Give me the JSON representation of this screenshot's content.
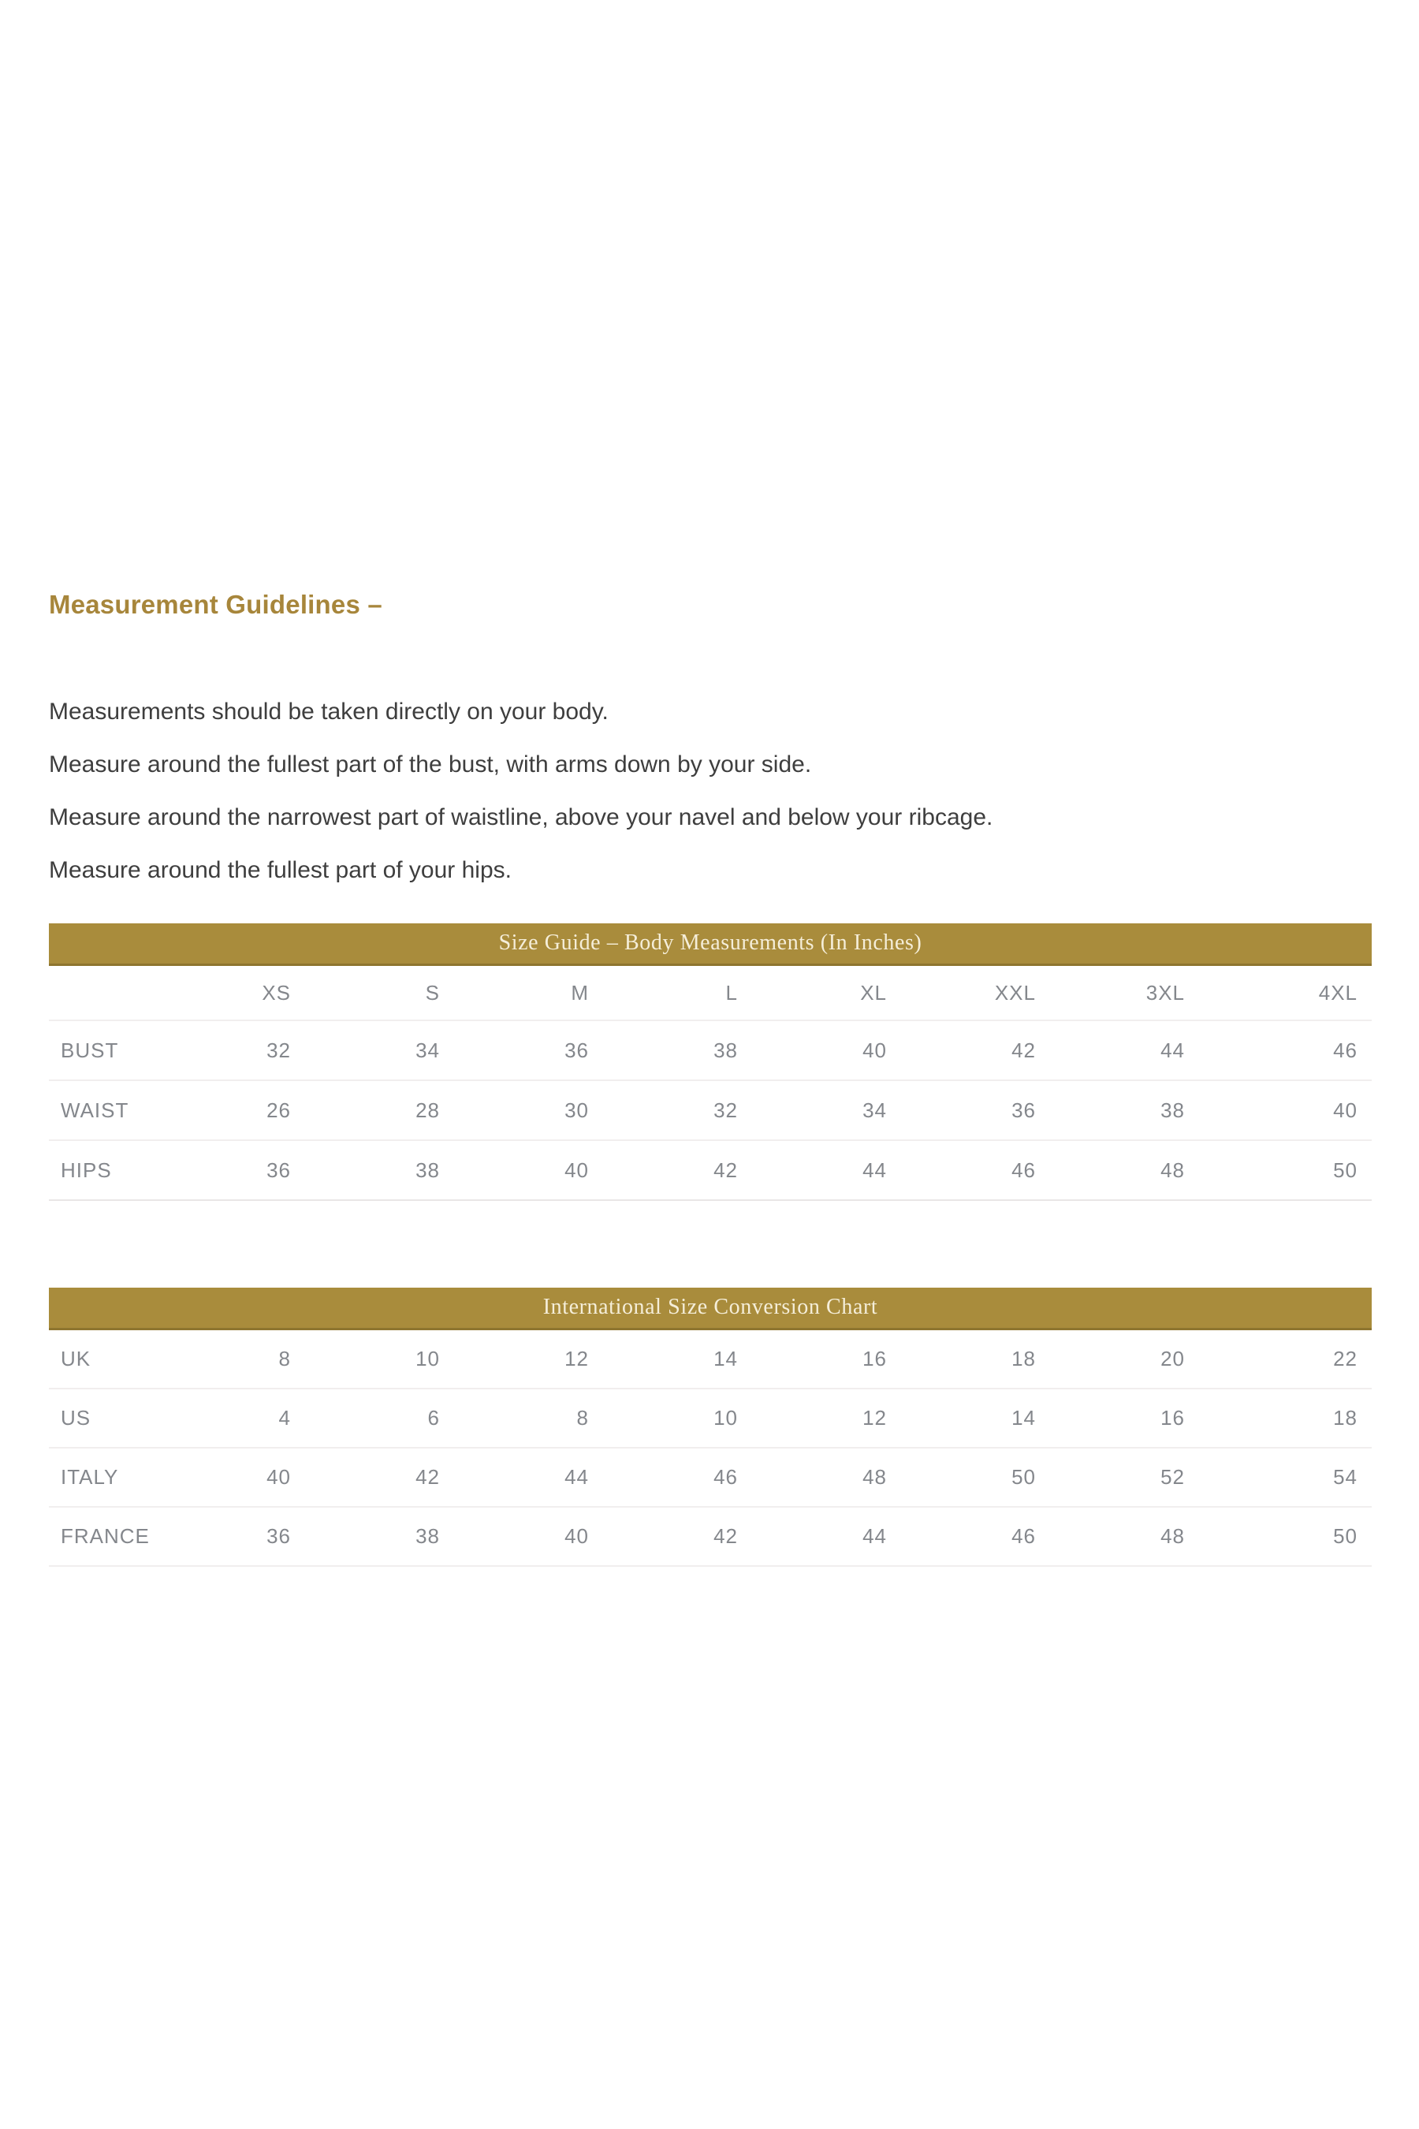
{
  "page": {
    "background_color": "#ffffff",
    "accent_color": "#a98c3c",
    "heading_color": "#a7863b"
  },
  "heading": {
    "text": "Measurement Guidelines –"
  },
  "guidelines": {
    "line1": "Measurements should be taken directly on your body.",
    "line2": "Measure around the fullest part of the bust, with arms down by your side.",
    "line3": "Measure around the narrowest part of waistline, above your navel and below your ribcage.",
    "line4": "Measure around the fullest part of your hips."
  },
  "size_guide_table": {
    "title": "Size Guide – Body Measurements (In Inches)",
    "columns": [
      "",
      "XS",
      "S",
      "M",
      "L",
      "XL",
      "XXL",
      "3XL",
      "4XL"
    ],
    "rows": [
      {
        "label": "BUST",
        "values": [
          "32",
          "34",
          "36",
          "38",
          "40",
          "42",
          "44",
          "46"
        ]
      },
      {
        "label": "WAIST",
        "values": [
          "26",
          "28",
          "30",
          "32",
          "34",
          "36",
          "38",
          "40"
        ]
      },
      {
        "label": "HIPS",
        "values": [
          "36",
          "38",
          "40",
          "42",
          "44",
          "46",
          "48",
          "50"
        ]
      }
    ]
  },
  "conversion_table": {
    "title": "International Size Conversion Chart",
    "rows": [
      {
        "label": "UK",
        "values": [
          "8",
          "10",
          "12",
          "14",
          "16",
          "18",
          "20",
          "22"
        ]
      },
      {
        "label": "US",
        "values": [
          "4",
          "6",
          "8",
          "10",
          "12",
          "14",
          "16",
          "18"
        ]
      },
      {
        "label": "ITALY",
        "values": [
          "40",
          "42",
          "44",
          "46",
          "48",
          "50",
          "52",
          "54"
        ]
      },
      {
        "label": "FRANCE",
        "values": [
          "36",
          "38",
          "40",
          "42",
          "44",
          "46",
          "48",
          "50"
        ]
      }
    ]
  }
}
